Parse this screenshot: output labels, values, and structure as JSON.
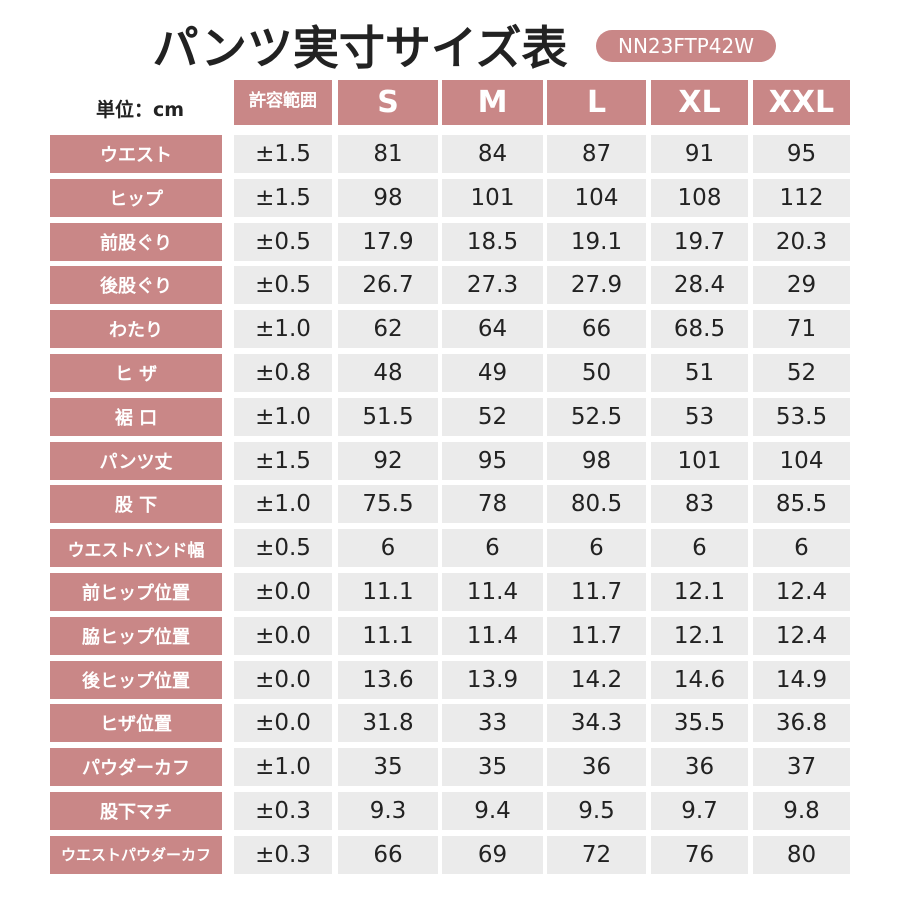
{
  "header": {
    "title": "パンツ実寸サイズ表",
    "code": "NN23FTP42W",
    "unit": "単位：cm"
  },
  "table": {
    "columns": [
      "許容範囲",
      "S",
      "M",
      "L",
      "XL",
      "XXL"
    ],
    "rows": [
      {
        "label": "ウエスト",
        "cells": [
          "±1.5",
          "81",
          "84",
          "87",
          "91",
          "95"
        ]
      },
      {
        "label": "ヒップ",
        "cells": [
          "±1.5",
          "98",
          "101",
          "104",
          "108",
          "112"
        ]
      },
      {
        "label": "前股ぐり",
        "cells": [
          "±0.5",
          "17.9",
          "18.5",
          "19.1",
          "19.7",
          "20.3"
        ]
      },
      {
        "label": "後股ぐり",
        "cells": [
          "±0.5",
          "26.7",
          "27.3",
          "27.9",
          "28.4",
          "29"
        ]
      },
      {
        "label": "わたり",
        "cells": [
          "±1.0",
          "62",
          "64",
          "66",
          "68.5",
          "71"
        ]
      },
      {
        "label": "ヒ ザ",
        "cells": [
          "±0.8",
          "48",
          "49",
          "50",
          "51",
          "52"
        ]
      },
      {
        "label": "裾 口",
        "cells": [
          "±1.0",
          "51.5",
          "52",
          "52.5",
          "53",
          "53.5"
        ]
      },
      {
        "label": "パンツ丈",
        "cells": [
          "±1.5",
          "92",
          "95",
          "98",
          "101",
          "104"
        ]
      },
      {
        "label": "股 下",
        "cells": [
          "±1.0",
          "75.5",
          "78",
          "80.5",
          "83",
          "85.5"
        ]
      },
      {
        "label": "ウエストバンド幅",
        "cells": [
          "±0.5",
          "6",
          "6",
          "6",
          "6",
          "6"
        ]
      },
      {
        "label": "前ヒップ位置",
        "cells": [
          "±0.0",
          "11.1",
          "11.4",
          "11.7",
          "12.1",
          "12.4"
        ]
      },
      {
        "label": "脇ヒップ位置",
        "cells": [
          "±0.0",
          "11.1",
          "11.4",
          "11.7",
          "12.1",
          "12.4"
        ]
      },
      {
        "label": "後ヒップ位置",
        "cells": [
          "±0.0",
          "13.6",
          "13.9",
          "14.2",
          "14.6",
          "14.9"
        ]
      },
      {
        "label": "ヒザ位置",
        "cells": [
          "±0.0",
          "31.8",
          "33",
          "34.3",
          "35.5",
          "36.8"
        ]
      },
      {
        "label": "パウダーカフ",
        "cells": [
          "±1.0",
          "35",
          "35",
          "36",
          "36",
          "37"
        ]
      },
      {
        "label": "股下マチ",
        "cells": [
          "±0.3",
          "9.3",
          "9.4",
          "9.5",
          "9.7",
          "9.8"
        ]
      },
      {
        "label": "ウエストパウダーカフ",
        "cells": [
          "±0.3",
          "66",
          "69",
          "72",
          "76",
          "80"
        ]
      }
    ]
  }
}
